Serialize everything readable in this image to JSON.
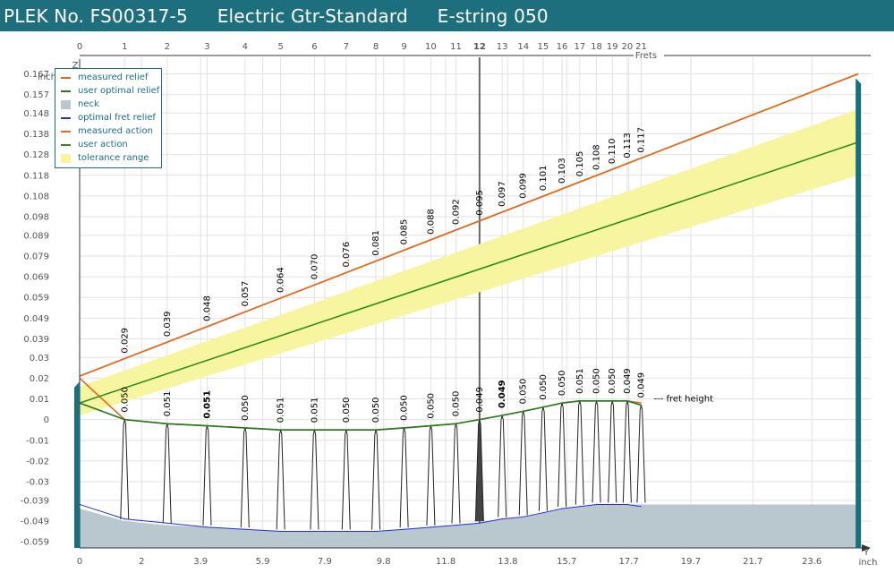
{
  "header": {
    "parts": [
      "PLEK No. FS00317-5",
      "Electric Gtr-Standard",
      "E-string 050"
    ]
  },
  "colors": {
    "header_bg": "#1d6f7d",
    "measured_relief": "#e06a1e",
    "user_optimal_relief": "#1f7a1f",
    "neck": "#b9c8cf",
    "optimal_fret_relief": "#1f2fd6",
    "measured_action": "#e06a1e",
    "user_action": "#2f8c1f",
    "tolerance_range": "#f8f5a0",
    "teal_edge": "#17707e"
  },
  "chart_data": {
    "type": "line",
    "z_axis": {
      "label": "Z",
      "unit": "inch",
      "range": [
        -0.062,
        0.175
      ],
      "ticks": [
        "0.167",
        "0.157",
        "0.148",
        "0.138",
        "0.128",
        "0.118",
        "0.108",
        "0.098",
        "0.089",
        "0.079",
        "0.069",
        "0.059",
        "0.049",
        "0.039",
        "0.03",
        "0.02",
        "0.01",
        "0",
        "-0.01",
        "-0.02",
        "-0.03",
        "-0.039",
        "-0.049",
        "-0.059"
      ]
    },
    "y_axis": {
      "label": "Y",
      "unit": "inch",
      "range": [
        0,
        25.5
      ],
      "ticks": [
        "0",
        "2",
        "3.9",
        "5.9",
        "7.9",
        "9.8",
        "11.8",
        "13.8",
        "15.7",
        "17.7",
        "19.7",
        "21.7",
        "23.6"
      ]
    },
    "frets_axis": {
      "label": "Frets",
      "highlighted": "12",
      "frets": [
        "0",
        "1",
        "2",
        "3",
        "4",
        "5",
        "6",
        "7",
        "8",
        "9",
        "10",
        "11",
        "12",
        "13",
        "14",
        "15",
        "16",
        "17",
        "18",
        "19",
        "20",
        "21"
      ],
      "positions_inch": [
        0,
        1.45,
        2.82,
        4.11,
        5.33,
        6.48,
        7.57,
        8.59,
        9.55,
        10.46,
        11.32,
        12.13,
        12.89,
        13.62,
        14.3,
        14.94,
        15.55,
        16.12,
        16.66,
        17.17,
        17.65,
        18.1
      ]
    },
    "fret_heights": {
      "label": "--- fret height",
      "values": [
        "0.050",
        "0.051",
        "0.051",
        "0.050",
        "0.051",
        "0.051",
        "0.050",
        "0.050",
        "0.050",
        "0.050",
        "0.050",
        "0.049",
        "0.049",
        "0.050",
        "0.050",
        "0.050",
        "0.051",
        "0.050",
        "0.050",
        "0.049",
        "0.049"
      ],
      "bold_indices": [
        2,
        12
      ]
    },
    "action_values": [
      "0.029",
      "0.039",
      "0.048",
      "0.057",
      "0.064",
      "0.070",
      "0.076",
      "0.081",
      "0.085",
      "0.088",
      "0.092",
      "0.095",
      "0.097",
      "0.099",
      "0.101",
      "0.103",
      "0.105",
      "0.108",
      "0.110",
      "0.113",
      "0.117"
    ],
    "series": [
      {
        "name": "measured relief",
        "x": [
          0,
          1.45,
          2.82,
          4.11,
          5.33,
          6.48,
          7.57,
          8.59,
          9.55,
          10.46,
          11.32,
          12.13,
          12.89,
          13.62,
          14.3,
          14.94,
          15.55,
          16.12,
          16.66,
          17.17,
          17.65,
          18.1
        ],
        "y": [
          0.02,
          0.0,
          -0.002,
          -0.003,
          -0.004,
          -0.005,
          -0.005,
          -0.005,
          -0.005,
          -0.004,
          -0.003,
          -0.002,
          0.0,
          0.002,
          0.004,
          0.006,
          0.008,
          0.009,
          0.009,
          0.009,
          0.009,
          0.008
        ]
      },
      {
        "name": "user optimal relief",
        "x": [
          0,
          1.45,
          2.82,
          4.11,
          5.33,
          6.48,
          7.57,
          8.59,
          9.55,
          10.46,
          11.32,
          12.13,
          12.89,
          13.62,
          14.3,
          14.94,
          15.55,
          16.12,
          16.66,
          17.17,
          17.65,
          18.1
        ],
        "y": [
          0.008,
          0.0,
          -0.002,
          -0.003,
          -0.004,
          -0.005,
          -0.005,
          -0.005,
          -0.005,
          -0.004,
          -0.003,
          -0.002,
          0.0,
          0.002,
          0.004,
          0.006,
          0.008,
          0.009,
          0.009,
          0.009,
          0.009,
          0.007
        ]
      },
      {
        "name": "neck",
        "x": [
          0,
          1.45,
          2.82,
          4.11,
          5.33,
          6.48,
          7.57,
          8.59,
          9.55,
          10.46,
          11.32,
          12.13,
          12.89,
          13.62,
          14.3,
          14.94,
          15.55,
          16.12,
          16.66,
          17.17,
          17.65,
          18.1,
          25.1
        ],
        "y": [
          -0.043,
          -0.049,
          -0.051,
          -0.052,
          -0.053,
          -0.054,
          -0.054,
          -0.054,
          -0.054,
          -0.053,
          -0.052,
          -0.051,
          -0.05,
          -0.048,
          -0.047,
          -0.045,
          -0.043,
          -0.042,
          -0.041,
          -0.041,
          -0.041,
          -0.041,
          -0.041
        ]
      },
      {
        "name": "optimal fret relief",
        "x": [
          0,
          1.45,
          2.82,
          4.11,
          5.33,
          6.48,
          7.57,
          8.59,
          9.55,
          10.46,
          11.32,
          12.13,
          12.89,
          13.62,
          14.3,
          14.94,
          15.55,
          16.12,
          16.66,
          17.17,
          17.65,
          18.1
        ],
        "y": [
          -0.041,
          -0.048,
          -0.05,
          -0.052,
          -0.053,
          -0.054,
          -0.054,
          -0.054,
          -0.054,
          -0.053,
          -0.052,
          -0.051,
          -0.05,
          -0.048,
          -0.047,
          -0.045,
          -0.043,
          -0.042,
          -0.041,
          -0.041,
          -0.041,
          -0.042
        ]
      },
      {
        "name": "measured action",
        "x": [
          0,
          25.1
        ],
        "y": [
          0.021,
          0.167
        ]
      },
      {
        "name": "user action",
        "x": [
          0,
          25.1
        ],
        "y": [
          0.008,
          0.134
        ]
      },
      {
        "name": "tolerance range",
        "x": [
          0,
          25.1
        ],
        "y_low": [
          0.002,
          0.118
        ],
        "y_high": [
          0.016,
          0.15
        ]
      }
    ],
    "legend": {
      "position": "top-left",
      "entries": [
        "measured relief",
        "user optimal relief",
        "neck",
        "optimal fret relief",
        "measured action",
        "user action",
        "tolerance range"
      ]
    },
    "grid": true
  }
}
